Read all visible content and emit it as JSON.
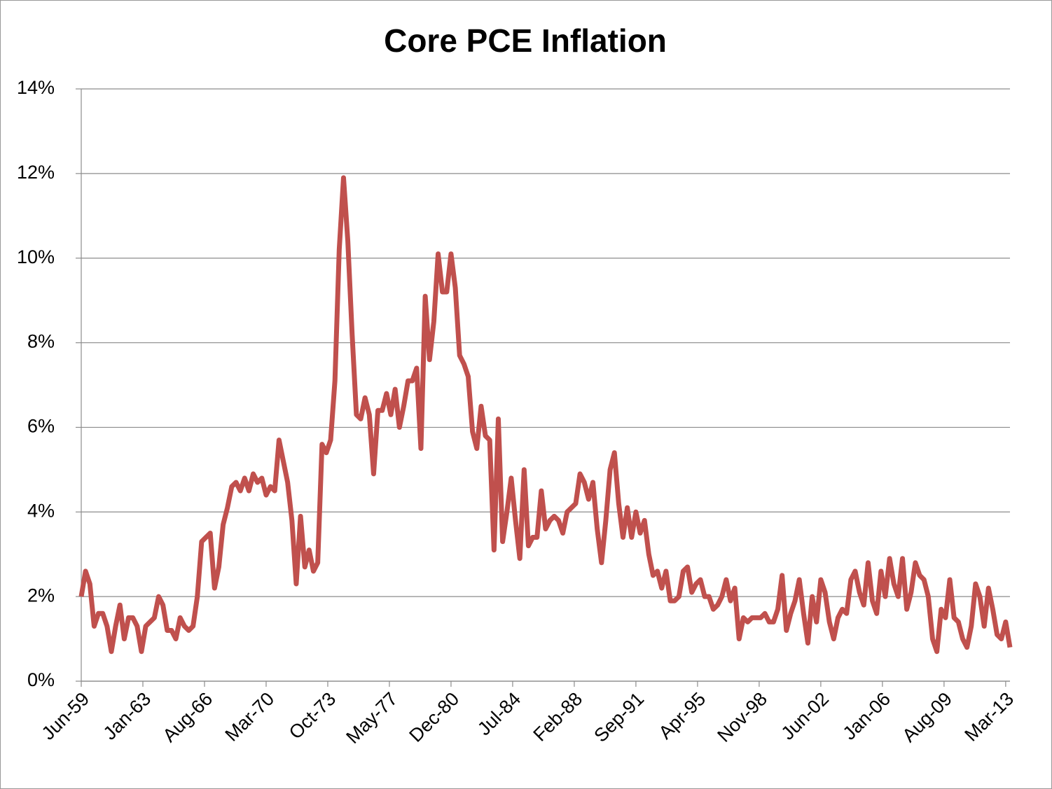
{
  "chart_data": {
    "type": "line",
    "title": "Core PCE Inflation",
    "x": [
      "Jun-59",
      "Sep-59",
      "Dec-59",
      "Mar-60",
      "Jun-60",
      "Sep-60",
      "Dec-60",
      "Mar-61",
      "Jun-61",
      "Sep-61",
      "Dec-61",
      "Mar-62",
      "Jun-62",
      "Sep-62",
      "Dec-62",
      "Mar-63",
      "Jun-63",
      "Sep-63",
      "Dec-63",
      "Mar-64",
      "Jun-64",
      "Sep-64",
      "Dec-64",
      "Mar-65",
      "Jun-65",
      "Sep-65",
      "Dec-65",
      "Mar-66",
      "Jun-66",
      "Sep-66",
      "Dec-66",
      "Mar-67",
      "Jun-67",
      "Sep-67",
      "Dec-67",
      "Mar-68",
      "Jun-68",
      "Sep-68",
      "Dec-68",
      "Mar-69",
      "Jun-69",
      "Sep-69",
      "Dec-69",
      "Mar-70",
      "Jun-70",
      "Sep-70",
      "Dec-70",
      "Mar-71",
      "Jun-71",
      "Sep-71",
      "Dec-71",
      "Mar-72",
      "Jun-72",
      "Sep-72",
      "Dec-72",
      "Mar-73",
      "Jun-73",
      "Sep-73",
      "Dec-73",
      "Mar-74",
      "Jun-74",
      "Sep-74",
      "Dec-74",
      "Mar-75",
      "Jun-75",
      "Sep-75",
      "Dec-75",
      "Mar-76",
      "Jun-76",
      "Sep-76",
      "Dec-76",
      "Mar-77",
      "Jun-77",
      "Sep-77",
      "Dec-77",
      "Mar-78",
      "Jun-78",
      "Sep-78",
      "Dec-78",
      "Mar-79",
      "Jun-79",
      "Sep-79",
      "Dec-79",
      "Mar-80",
      "Jun-80",
      "Sep-80",
      "Dec-80",
      "Mar-81",
      "Jun-81",
      "Sep-81",
      "Dec-81",
      "Mar-82",
      "Jun-82",
      "Sep-82",
      "Dec-82",
      "Mar-83",
      "Jun-83",
      "Sep-83",
      "Dec-83",
      "Mar-84",
      "Jun-84",
      "Sep-84",
      "Dec-84",
      "Mar-85",
      "Jun-85",
      "Sep-85",
      "Dec-85",
      "Mar-86",
      "Jun-86",
      "Sep-86",
      "Dec-86",
      "Mar-87",
      "Jun-87",
      "Sep-87",
      "Dec-87",
      "Mar-88",
      "Jun-88",
      "Sep-88",
      "Dec-88",
      "Mar-89",
      "Jun-89",
      "Sep-89",
      "Dec-89",
      "Mar-90",
      "Jun-90",
      "Sep-90",
      "Dec-90",
      "Mar-91",
      "Jun-91",
      "Sep-91",
      "Dec-91",
      "Mar-92",
      "Jun-92",
      "Sep-92",
      "Dec-92",
      "Mar-93",
      "Jun-93",
      "Sep-93",
      "Dec-93",
      "Mar-94",
      "Jun-94",
      "Sep-94",
      "Dec-94",
      "Mar-95",
      "Jun-95",
      "Sep-95",
      "Dec-95",
      "Mar-96",
      "Jun-96",
      "Sep-96",
      "Dec-96",
      "Mar-97",
      "Jun-97",
      "Sep-97",
      "Dec-97",
      "Mar-98",
      "Jun-98",
      "Sep-98",
      "Dec-98",
      "Mar-99",
      "Jun-99",
      "Sep-99",
      "Dec-99",
      "Mar-00",
      "Jun-00",
      "Sep-00",
      "Dec-00",
      "Mar-01",
      "Jun-01",
      "Sep-01",
      "Dec-01",
      "Mar-02",
      "Jun-02",
      "Sep-02",
      "Dec-02",
      "Mar-03",
      "Jun-03",
      "Sep-03",
      "Dec-03",
      "Mar-04",
      "Jun-04",
      "Sep-04",
      "Dec-04",
      "Mar-05",
      "Jun-05",
      "Sep-05",
      "Dec-05",
      "Mar-06",
      "Jun-06",
      "Sep-06",
      "Dec-06",
      "Mar-07",
      "Jun-07",
      "Sep-07",
      "Dec-07",
      "Mar-08",
      "Jun-08",
      "Sep-08",
      "Dec-08",
      "Mar-09",
      "Jun-09",
      "Sep-09",
      "Dec-09",
      "Mar-10",
      "Jun-10",
      "Sep-10",
      "Dec-10",
      "Mar-11",
      "Jun-11",
      "Sep-11",
      "Dec-11",
      "Mar-12",
      "Jun-12",
      "Sep-12",
      "Dec-12",
      "Mar-13",
      "Jun-13"
    ],
    "series": [
      {
        "color": "#c0504d",
        "values": [
          2.0,
          2.6,
          2.3,
          1.3,
          1.6,
          1.6,
          1.3,
          0.7,
          1.3,
          1.8,
          1.0,
          1.5,
          1.5,
          1.3,
          0.7,
          1.3,
          1.4,
          1.5,
          2.0,
          1.8,
          1.2,
          1.2,
          1.0,
          1.5,
          1.3,
          1.2,
          1.3,
          2.0,
          3.3,
          3.4,
          3.5,
          2.2,
          2.7,
          3.7,
          4.1,
          4.6,
          4.7,
          4.5,
          4.8,
          4.5,
          4.9,
          4.7,
          4.8,
          4.4,
          4.6,
          4.5,
          5.7,
          5.2,
          4.7,
          3.8,
          2.3,
          3.9,
          2.7,
          3.1,
          2.6,
          2.8,
          5.6,
          5.4,
          5.7,
          7.1,
          10.2,
          11.9,
          10.4,
          8.2,
          6.3,
          6.2,
          6.7,
          6.3,
          4.9,
          6.4,
          6.4,
          6.8,
          6.3,
          6.9,
          6.0,
          6.5,
          7.1,
          7.1,
          7.4,
          5.5,
          9.1,
          7.6,
          8.5,
          10.1,
          9.2,
          9.2,
          10.1,
          9.3,
          7.7,
          7.5,
          7.2,
          5.9,
          5.5,
          6.5,
          5.8,
          5.7,
          3.1,
          6.2,
          3.3,
          4.0,
          4.8,
          3.8,
          2.9,
          5.0,
          3.2,
          3.4,
          3.4,
          4.5,
          3.6,
          3.8,
          3.9,
          3.8,
          3.5,
          4.0,
          4.1,
          4.2,
          4.9,
          4.7,
          4.3,
          4.7,
          3.6,
          2.8,
          3.8,
          5.0,
          5.4,
          4.2,
          3.4,
          4.1,
          3.4,
          4.0,
          3.5,
          3.8,
          3.0,
          2.5,
          2.6,
          2.2,
          2.6,
          1.9,
          1.9,
          2.0,
          2.6,
          2.7,
          2.1,
          2.3,
          2.4,
          2.0,
          2.0,
          1.7,
          1.8,
          2.0,
          2.4,
          1.9,
          2.2,
          1.0,
          1.5,
          1.4,
          1.5,
          1.5,
          1.5,
          1.6,
          1.4,
          1.4,
          1.7,
          2.5,
          1.2,
          1.6,
          1.9,
          2.4,
          1.6,
          0.9,
          2.0,
          1.4,
          2.4,
          2.1,
          1.4,
          1.0,
          1.5,
          1.7,
          1.6,
          2.4,
          2.6,
          2.1,
          1.8,
          2.8,
          1.9,
          1.6,
          2.6,
          2.0,
          2.9,
          2.3,
          2.0,
          2.9,
          1.7,
          2.1,
          2.8,
          2.5,
          2.4,
          2.0,
          1.0,
          0.7,
          1.7,
          1.5,
          2.4,
          1.5,
          1.4,
          1.0,
          0.8,
          1.3,
          2.3,
          2.0,
          1.3,
          2.2,
          1.7,
          1.1,
          1.0,
          1.4,
          0.8
        ]
      }
    ],
    "xlim": [
      "Jun-59",
      "Jun-13"
    ],
    "xticks": [
      "Jun-59",
      "Jan-63",
      "Aug-66",
      "Mar-70",
      "Oct-73",
      "May-77",
      "Dec-80",
      "Jul-84",
      "Feb-88",
      "Sep-91",
      "Apr-95",
      "Nov-98",
      "Jun-02",
      "Jan-06",
      "Aug-09",
      "Mar-13"
    ],
    "ylim": [
      0,
      14
    ],
    "yticks": [
      {
        "value": 0,
        "label": "0%"
      },
      {
        "value": 2,
        "label": "2%"
      },
      {
        "value": 4,
        "label": "4%"
      },
      {
        "value": 6,
        "label": "6%"
      },
      {
        "value": 8,
        "label": "8%"
      },
      {
        "value": 10,
        "label": "10%"
      },
      {
        "value": 12,
        "label": "12%"
      },
      {
        "value": 14,
        "label": "14%"
      }
    ],
    "grid": true
  }
}
